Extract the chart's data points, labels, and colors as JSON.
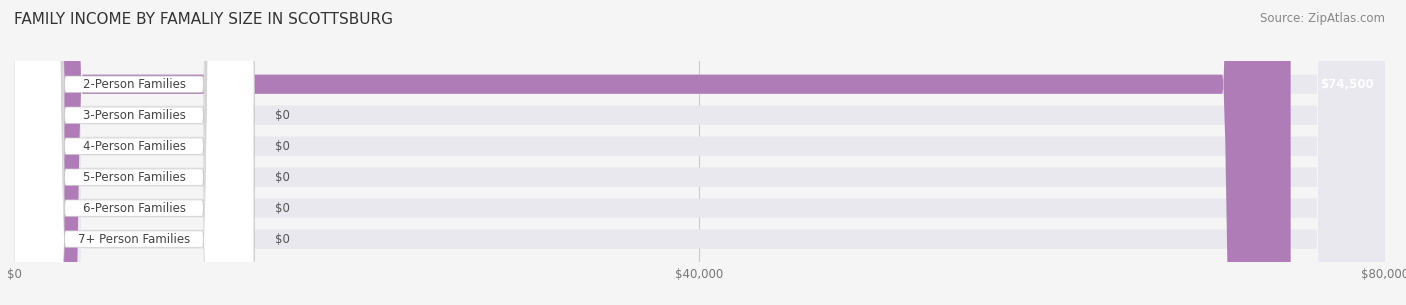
{
  "title": "FAMILY INCOME BY FAMALIY SIZE IN SCOTTSBURG",
  "source": "Source: ZipAtlas.com",
  "categories": [
    "2-Person Families",
    "3-Person Families",
    "4-Person Families",
    "5-Person Families",
    "6-Person Families",
    "7+ Person Families"
  ],
  "values": [
    74500,
    0,
    0,
    0,
    0,
    0
  ],
  "bar_colors": [
    "#b07cb8",
    "#6dbfb8",
    "#a9a9d4",
    "#f4a0b0",
    "#f7c98b",
    "#f4a89a"
  ],
  "value_labels": [
    "$74,500",
    "$0",
    "$0",
    "$0",
    "$0",
    "$0"
  ],
  "xlim": [
    0,
    80000
  ],
  "xticks": [
    0,
    40000,
    80000
  ],
  "xtick_labels": [
    "$0",
    "$40,000",
    "$80,000"
  ],
  "background_color": "#f5f5f5",
  "bar_bg_color": "#e8e8ee",
  "title_fontsize": 11,
  "source_fontsize": 8.5,
  "label_fontsize": 8.5,
  "value_fontsize": 8.5,
  "bar_height": 0.62
}
